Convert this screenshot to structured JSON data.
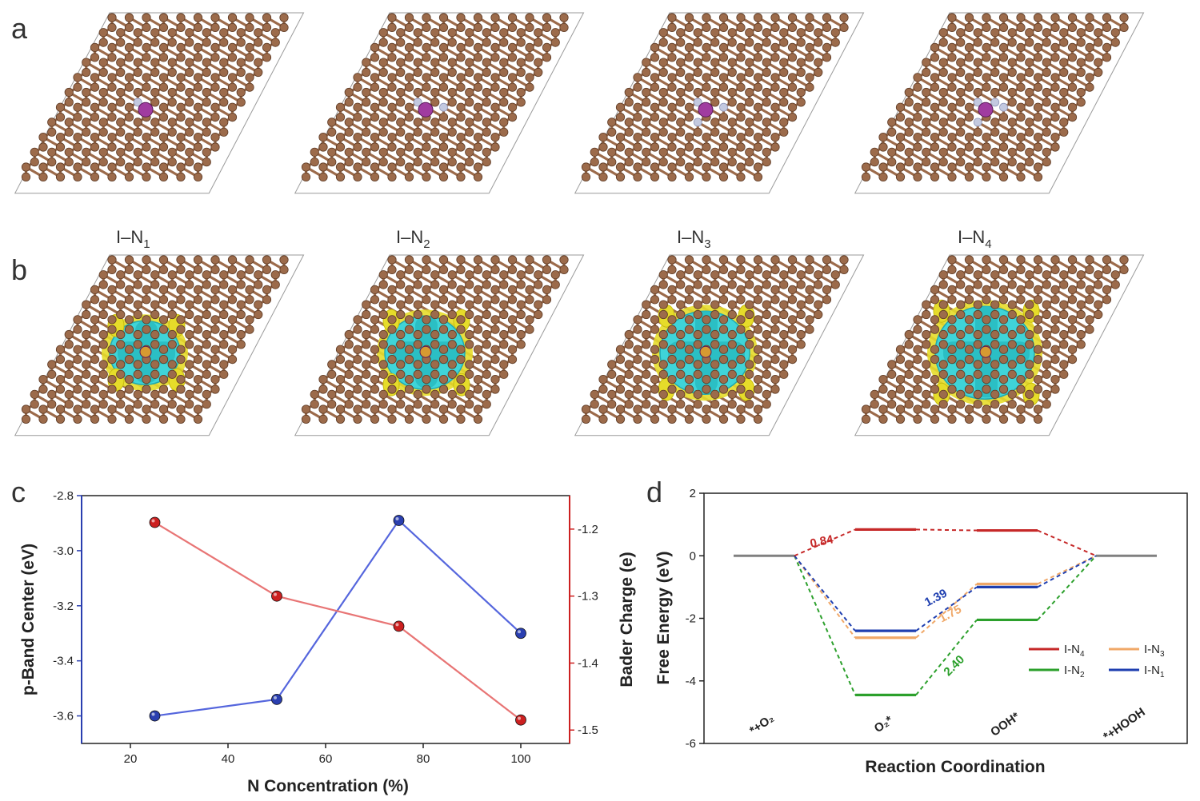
{
  "panels": {
    "a": {
      "letter": "a",
      "labels": [
        "I–N",
        "I–N",
        "I–N",
        "I–N"
      ],
      "subs": [
        "1",
        "2",
        "3",
        "4"
      ]
    },
    "b": {
      "letter": "b"
    },
    "c": {
      "letter": "c"
    },
    "d": {
      "letter": "d"
    }
  },
  "colors": {
    "carbon": "#9c6b4b",
    "nitrogen": "#c3c9e0",
    "iodine": "#a03ca0",
    "charge_depletion": "#3fd4d8",
    "charge_accumulation": "#e6dc2a",
    "series_blue": "#2a3fb0",
    "series_red": "#cc2020",
    "I-N4": "#c62828",
    "I-N3": "#f0a868",
    "I-N2": "#2ca02c",
    "I-N1": "#1f3fb0",
    "baseline": "#808080"
  },
  "chart_data": [
    {
      "id": "c",
      "type": "line",
      "xlabel": "N Concentration (%)",
      "xlim": [
        10,
        110
      ],
      "xticks": [
        20,
        40,
        60,
        80,
        100
      ],
      "x": [
        25,
        50,
        75,
        100
      ],
      "series": [
        {
          "axis": "left",
          "color": "blue",
          "values": [
            -3.6,
            -3.54,
            -2.89,
            -3.3
          ]
        },
        {
          "axis": "right",
          "color": "red",
          "values": [
            -1.19,
            -1.3,
            -1.345,
            -1.485
          ]
        }
      ],
      "ylabel_left": "p-Band Center (eV)",
      "ylim_left": [
        -3.7,
        -2.8
      ],
      "yticks_left": [
        "-2.8",
        "-3.0",
        "-3.2",
        "-3.4",
        "-3.6"
      ],
      "ylabel_right": "Bader Charge (e)",
      "ylim_right": [
        -1.52,
        -1.15
      ],
      "yticks_right": [
        "-1.2",
        "-1.3",
        "-1.4",
        "-1.5"
      ]
    },
    {
      "id": "d",
      "type": "line",
      "xlabel": "Reaction Coordination",
      "ylabel": "Free Energy (eV)",
      "ylim": [
        -6,
        2
      ],
      "yticks": [
        "2",
        "0",
        "-2",
        "-4",
        "-6"
      ],
      "categories": [
        "*+O₂",
        "O₂*",
        "OOH*",
        "*+HOOH"
      ],
      "series": [
        {
          "name": "I-N4",
          "values": [
            0,
            0.84,
            0.81,
            0
          ]
        },
        {
          "name": "I-N3",
          "values": [
            0,
            -2.62,
            -0.9,
            0
          ]
        },
        {
          "name": "I-N2",
          "values": [
            0,
            -4.45,
            -2.05,
            0
          ]
        },
        {
          "name": "I-N1",
          "values": [
            0,
            -2.4,
            -1.0,
            0
          ]
        }
      ],
      "annotations": [
        "0.84",
        "1.39",
        "1.75",
        "2.40"
      ],
      "legend": [
        "I-N",
        "I-N",
        "I-N",
        "I-N"
      ],
      "legend_subs": [
        "4",
        "3",
        "2",
        "1"
      ],
      "legend_placement": "lower-right"
    }
  ]
}
